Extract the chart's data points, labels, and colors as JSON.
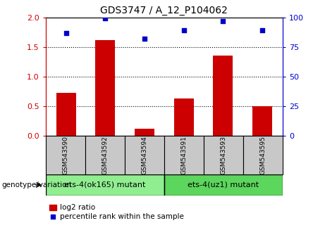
{
  "title": "GDS3747 / A_12_P104062",
  "categories": [
    "GSM543590",
    "GSM543592",
    "GSM543594",
    "GSM543591",
    "GSM543593",
    "GSM543595"
  ],
  "log2_ratio": [
    0.72,
    1.62,
    0.12,
    0.63,
    1.35,
    0.5
  ],
  "percentile_rank": [
    87,
    99,
    82,
    89,
    97,
    89
  ],
  "ylim_left": [
    0,
    2.0
  ],
  "ylim_right": [
    0,
    100
  ],
  "bar_color": "#cc0000",
  "dot_color": "#0000cc",
  "grid_values": [
    0.5,
    1.0,
    1.5
  ],
  "left_yticks": [
    0,
    0.5,
    1.0,
    1.5,
    2.0
  ],
  "right_yticks": [
    0,
    25,
    50,
    75,
    100
  ],
  "group1_label": "ets-4(ok165) mutant",
  "group2_label": "ets-4(uz1) mutant",
  "group1_color": "#90ee90",
  "group2_color": "#5cd65c",
  "group1_count": 3,
  "group2_count": 3,
  "xlabel_group": "genotype/variation",
  "legend_bar_label": "log2 ratio",
  "legend_dot_label": "percentile rank within the sample",
  "tick_label_color": "#cc0000",
  "right_tick_color": "#0000cc",
  "bar_width": 0.5,
  "tick_box_color": "#c8c8c8",
  "plot_bg_color": "#ffffff"
}
